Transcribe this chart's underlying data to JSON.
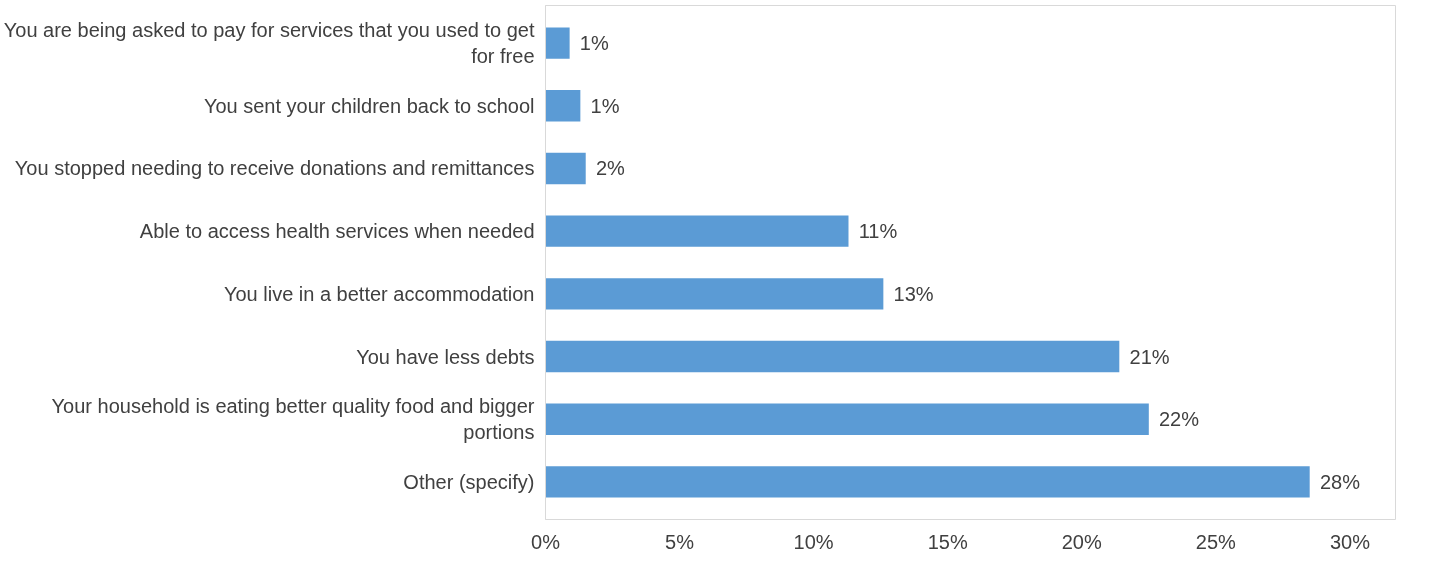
{
  "chart_data": {
    "type": "bar",
    "orientation": "horizontal",
    "categories": [
      "You are being asked to pay for services that you used to get for free",
      "You sent your children back to school",
      "You stopped needing to receive donations and remittances",
      "Able to access health services when needed",
      "You live in a better accommodation",
      "You have less debts",
      "Your household is eating better quality food and bigger portions",
      "Other (specify)"
    ],
    "values": [
      0.9,
      1.3,
      1.5,
      11.3,
      12.6,
      21.4,
      22.5,
      28.5
    ],
    "value_labels": [
      "1%",
      "1%",
      "2%",
      "11%",
      "13%",
      "21%",
      "22%",
      "28%"
    ],
    "color": "#5b9bd5",
    "xlim": [
      0,
      31.7
    ],
    "xticks": [
      {
        "value": 0,
        "label": "0%"
      },
      {
        "value": 5,
        "label": "5%"
      },
      {
        "value": 10,
        "label": "10%"
      },
      {
        "value": 15,
        "label": "15%"
      },
      {
        "value": 20,
        "label": "20%"
      },
      {
        "value": 25,
        "label": "25%"
      },
      {
        "value": 30,
        "label": "30%"
      }
    ],
    "grid": false
  }
}
